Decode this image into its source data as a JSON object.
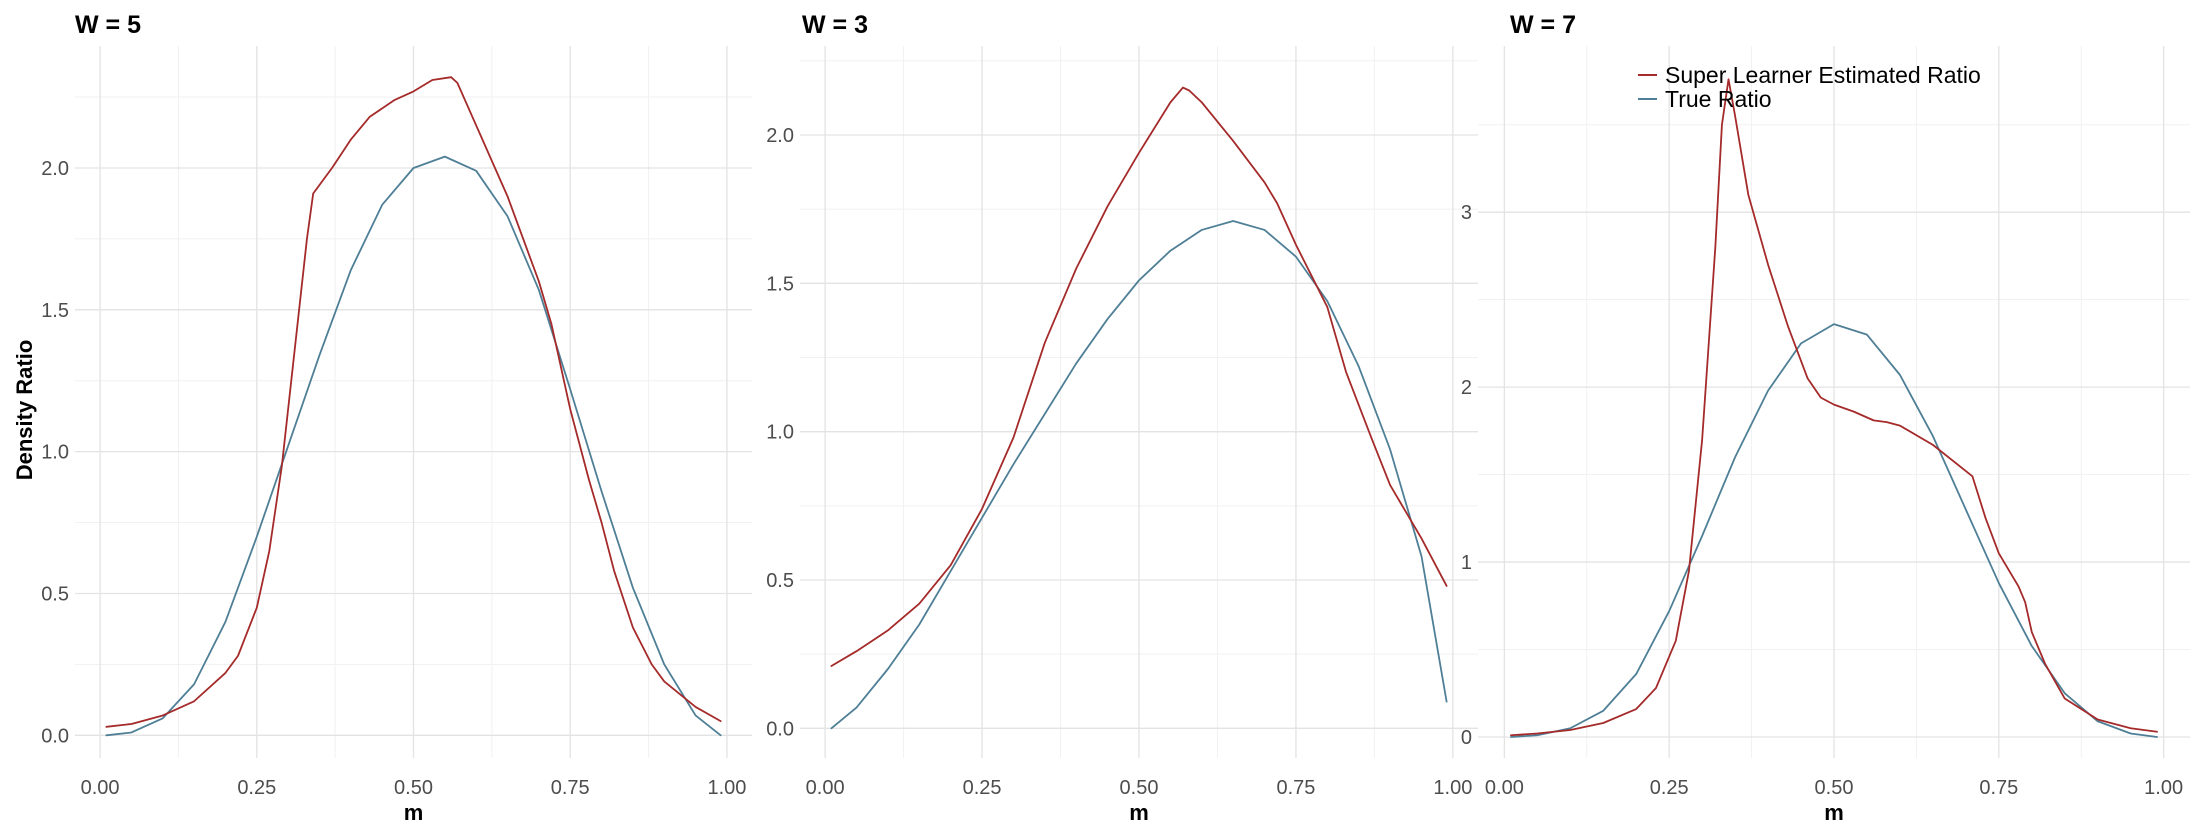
{
  "colors": {
    "estimated": "#A52A2A",
    "true": "#4E7F96",
    "grid_major": "#e3e3e3",
    "grid_minor": "#f1f1f1"
  },
  "y_axis_title": "Density Ratio",
  "legend": {
    "placement": "top-right",
    "items": [
      {
        "label": "Super Learner Estimated Ratio",
        "color": "#A52A2A"
      },
      {
        "label": "True Ratio",
        "color": "#4E7F96"
      }
    ]
  },
  "chart_data": [
    {
      "type": "line",
      "title": "W = 5",
      "xlabel": "m",
      "ylabel": "Density Ratio",
      "xlim": [
        -0.04,
        1.04
      ],
      "ylim": [
        -0.08,
        2.43
      ],
      "x_ticks": [
        0,
        0.25,
        0.5,
        0.75,
        1
      ],
      "x_tick_labels": [
        "0.00",
        "0.25",
        "0.50",
        "0.75",
        "1.00"
      ],
      "y_ticks": [
        0,
        0.5,
        1,
        1.5,
        2
      ],
      "y_tick_labels": [
        "0.0",
        "0.5",
        "1.0",
        "1.5",
        "2.0"
      ],
      "grid": true,
      "series": [
        {
          "name": "Super Learner Estimated Ratio",
          "color": "#A52A2A",
          "points": [
            [
              0.01,
              0.03
            ],
            [
              0.05,
              0.04
            ],
            [
              0.1,
              0.07
            ],
            [
              0.15,
              0.12
            ],
            [
              0.2,
              0.22
            ],
            [
              0.22,
              0.28
            ],
            [
              0.25,
              0.45
            ],
            [
              0.27,
              0.65
            ],
            [
              0.29,
              0.95
            ],
            [
              0.31,
              1.35
            ],
            [
              0.33,
              1.75
            ],
            [
              0.34,
              1.91
            ],
            [
              0.37,
              2.0
            ],
            [
              0.4,
              2.1
            ],
            [
              0.43,
              2.18
            ],
            [
              0.47,
              2.24
            ],
            [
              0.5,
              2.27
            ],
            [
              0.53,
              2.31
            ],
            [
              0.56,
              2.32
            ],
            [
              0.57,
              2.3
            ],
            [
              0.6,
              2.15
            ],
            [
              0.65,
              1.9
            ],
            [
              0.7,
              1.6
            ],
            [
              0.72,
              1.45
            ],
            [
              0.75,
              1.15
            ],
            [
              0.78,
              0.9
            ],
            [
              0.8,
              0.75
            ],
            [
              0.82,
              0.58
            ],
            [
              0.85,
              0.38
            ],
            [
              0.88,
              0.25
            ],
            [
              0.9,
              0.19
            ],
            [
              0.95,
              0.1
            ],
            [
              0.99,
              0.05
            ]
          ]
        },
        {
          "name": "True Ratio",
          "color": "#4E7F96",
          "points": [
            [
              0.01,
              0.0
            ],
            [
              0.05,
              0.01
            ],
            [
              0.1,
              0.06
            ],
            [
              0.15,
              0.18
            ],
            [
              0.2,
              0.4
            ],
            [
              0.25,
              0.7
            ],
            [
              0.3,
              1.02
            ],
            [
              0.35,
              1.34
            ],
            [
              0.4,
              1.64
            ],
            [
              0.45,
              1.87
            ],
            [
              0.5,
              2.0
            ],
            [
              0.55,
              2.04
            ],
            [
              0.6,
              1.99
            ],
            [
              0.65,
              1.83
            ],
            [
              0.7,
              1.57
            ],
            [
              0.75,
              1.22
            ],
            [
              0.8,
              0.86
            ],
            [
              0.85,
              0.52
            ],
            [
              0.9,
              0.25
            ],
            [
              0.95,
              0.07
            ],
            [
              0.99,
              0.0
            ]
          ]
        }
      ]
    },
    {
      "type": "line",
      "title": "W = 3",
      "xlabel": "m",
      "ylabel": "",
      "xlim": [
        -0.04,
        1.04
      ],
      "ylim": [
        -0.1,
        2.3
      ],
      "x_ticks": [
        0,
        0.25,
        0.5,
        0.75,
        1
      ],
      "x_tick_labels": [
        "0.00",
        "0.25",
        "0.50",
        "0.75",
        "1.00"
      ],
      "y_ticks": [
        0,
        0.5,
        1,
        1.5,
        2
      ],
      "y_tick_labels": [
        "0.0",
        "0.5",
        "1.0",
        "1.5",
        "2.0"
      ],
      "grid": true,
      "series": [
        {
          "name": "Super Learner Estimated Ratio",
          "color": "#A52A2A",
          "points": [
            [
              0.01,
              0.21
            ],
            [
              0.05,
              0.26
            ],
            [
              0.1,
              0.33
            ],
            [
              0.15,
              0.42
            ],
            [
              0.2,
              0.55
            ],
            [
              0.25,
              0.74
            ],
            [
              0.3,
              0.98
            ],
            [
              0.35,
              1.3
            ],
            [
              0.4,
              1.55
            ],
            [
              0.45,
              1.76
            ],
            [
              0.5,
              1.94
            ],
            [
              0.55,
              2.11
            ],
            [
              0.57,
              2.16
            ],
            [
              0.58,
              2.15
            ],
            [
              0.6,
              2.11
            ],
            [
              0.65,
              1.98
            ],
            [
              0.7,
              1.84
            ],
            [
              0.72,
              1.77
            ],
            [
              0.75,
              1.63
            ],
            [
              0.8,
              1.42
            ],
            [
              0.83,
              1.2
            ],
            [
              0.87,
              0.98
            ],
            [
              0.9,
              0.82
            ],
            [
              0.95,
              0.64
            ],
            [
              0.99,
              0.48
            ]
          ]
        },
        {
          "name": "True Ratio",
          "color": "#4E7F96",
          "points": [
            [
              0.01,
              0.0
            ],
            [
              0.05,
              0.07
            ],
            [
              0.1,
              0.2
            ],
            [
              0.15,
              0.35
            ],
            [
              0.2,
              0.53
            ],
            [
              0.25,
              0.71
            ],
            [
              0.3,
              0.89
            ],
            [
              0.35,
              1.06
            ],
            [
              0.4,
              1.23
            ],
            [
              0.45,
              1.38
            ],
            [
              0.5,
              1.51
            ],
            [
              0.55,
              1.61
            ],
            [
              0.6,
              1.68
            ],
            [
              0.65,
              1.71
            ],
            [
              0.7,
              1.68
            ],
            [
              0.75,
              1.59
            ],
            [
              0.8,
              1.44
            ],
            [
              0.85,
              1.22
            ],
            [
              0.9,
              0.94
            ],
            [
              0.95,
              0.58
            ],
            [
              0.99,
              0.09
            ]
          ]
        }
      ]
    },
    {
      "type": "line",
      "title": "W = 7",
      "xlabel": "m",
      "ylabel": "",
      "xlim": [
        -0.04,
        1.04
      ],
      "ylim": [
        -0.12,
        3.95
      ],
      "x_ticks": [
        0,
        0.25,
        0.5,
        0.75,
        1
      ],
      "x_tick_labels": [
        "0.00",
        "0.25",
        "0.50",
        "0.75",
        "1.00"
      ],
      "y_ticks": [
        0,
        1,
        2,
        3
      ],
      "y_tick_labels": [
        "0",
        "1",
        "2",
        "3"
      ],
      "grid": true,
      "series": [
        {
          "name": "Super Learner Estimated Ratio",
          "color": "#A52A2A",
          "points": [
            [
              0.01,
              0.01
            ],
            [
              0.05,
              0.02
            ],
            [
              0.1,
              0.04
            ],
            [
              0.15,
              0.08
            ],
            [
              0.2,
              0.16
            ],
            [
              0.23,
              0.28
            ],
            [
              0.26,
              0.55
            ],
            [
              0.28,
              0.95
            ],
            [
              0.3,
              1.7
            ],
            [
              0.32,
              2.8
            ],
            [
              0.33,
              3.5
            ],
            [
              0.34,
              3.76
            ],
            [
              0.35,
              3.55
            ],
            [
              0.37,
              3.1
            ],
            [
              0.4,
              2.7
            ],
            [
              0.43,
              2.35
            ],
            [
              0.46,
              2.05
            ],
            [
              0.48,
              1.94
            ],
            [
              0.5,
              1.9
            ],
            [
              0.53,
              1.86
            ],
            [
              0.56,
              1.81
            ],
            [
              0.58,
              1.8
            ],
            [
              0.6,
              1.78
            ],
            [
              0.65,
              1.67
            ],
            [
              0.7,
              1.52
            ],
            [
              0.71,
              1.49
            ],
            [
              0.73,
              1.25
            ],
            [
              0.75,
              1.05
            ],
            [
              0.78,
              0.86
            ],
            [
              0.79,
              0.77
            ],
            [
              0.8,
              0.6
            ],
            [
              0.82,
              0.42
            ],
            [
              0.85,
              0.22
            ],
            [
              0.9,
              0.1
            ],
            [
              0.95,
              0.05
            ],
            [
              0.99,
              0.03
            ]
          ]
        },
        {
          "name": "True Ratio",
          "color": "#4E7F96",
          "points": [
            [
              0.01,
              0.0
            ],
            [
              0.05,
              0.01
            ],
            [
              0.1,
              0.05
            ],
            [
              0.15,
              0.15
            ],
            [
              0.2,
              0.36
            ],
            [
              0.25,
              0.72
            ],
            [
              0.3,
              1.15
            ],
            [
              0.35,
              1.6
            ],
            [
              0.4,
              1.98
            ],
            [
              0.45,
              2.25
            ],
            [
              0.5,
              2.36
            ],
            [
              0.55,
              2.3
            ],
            [
              0.6,
              2.07
            ],
            [
              0.65,
              1.72
            ],
            [
              0.7,
              1.3
            ],
            [
              0.75,
              0.88
            ],
            [
              0.8,
              0.52
            ],
            [
              0.85,
              0.25
            ],
            [
              0.9,
              0.09
            ],
            [
              0.95,
              0.02
            ],
            [
              0.99,
              0.0
            ]
          ]
        }
      ]
    }
  ]
}
